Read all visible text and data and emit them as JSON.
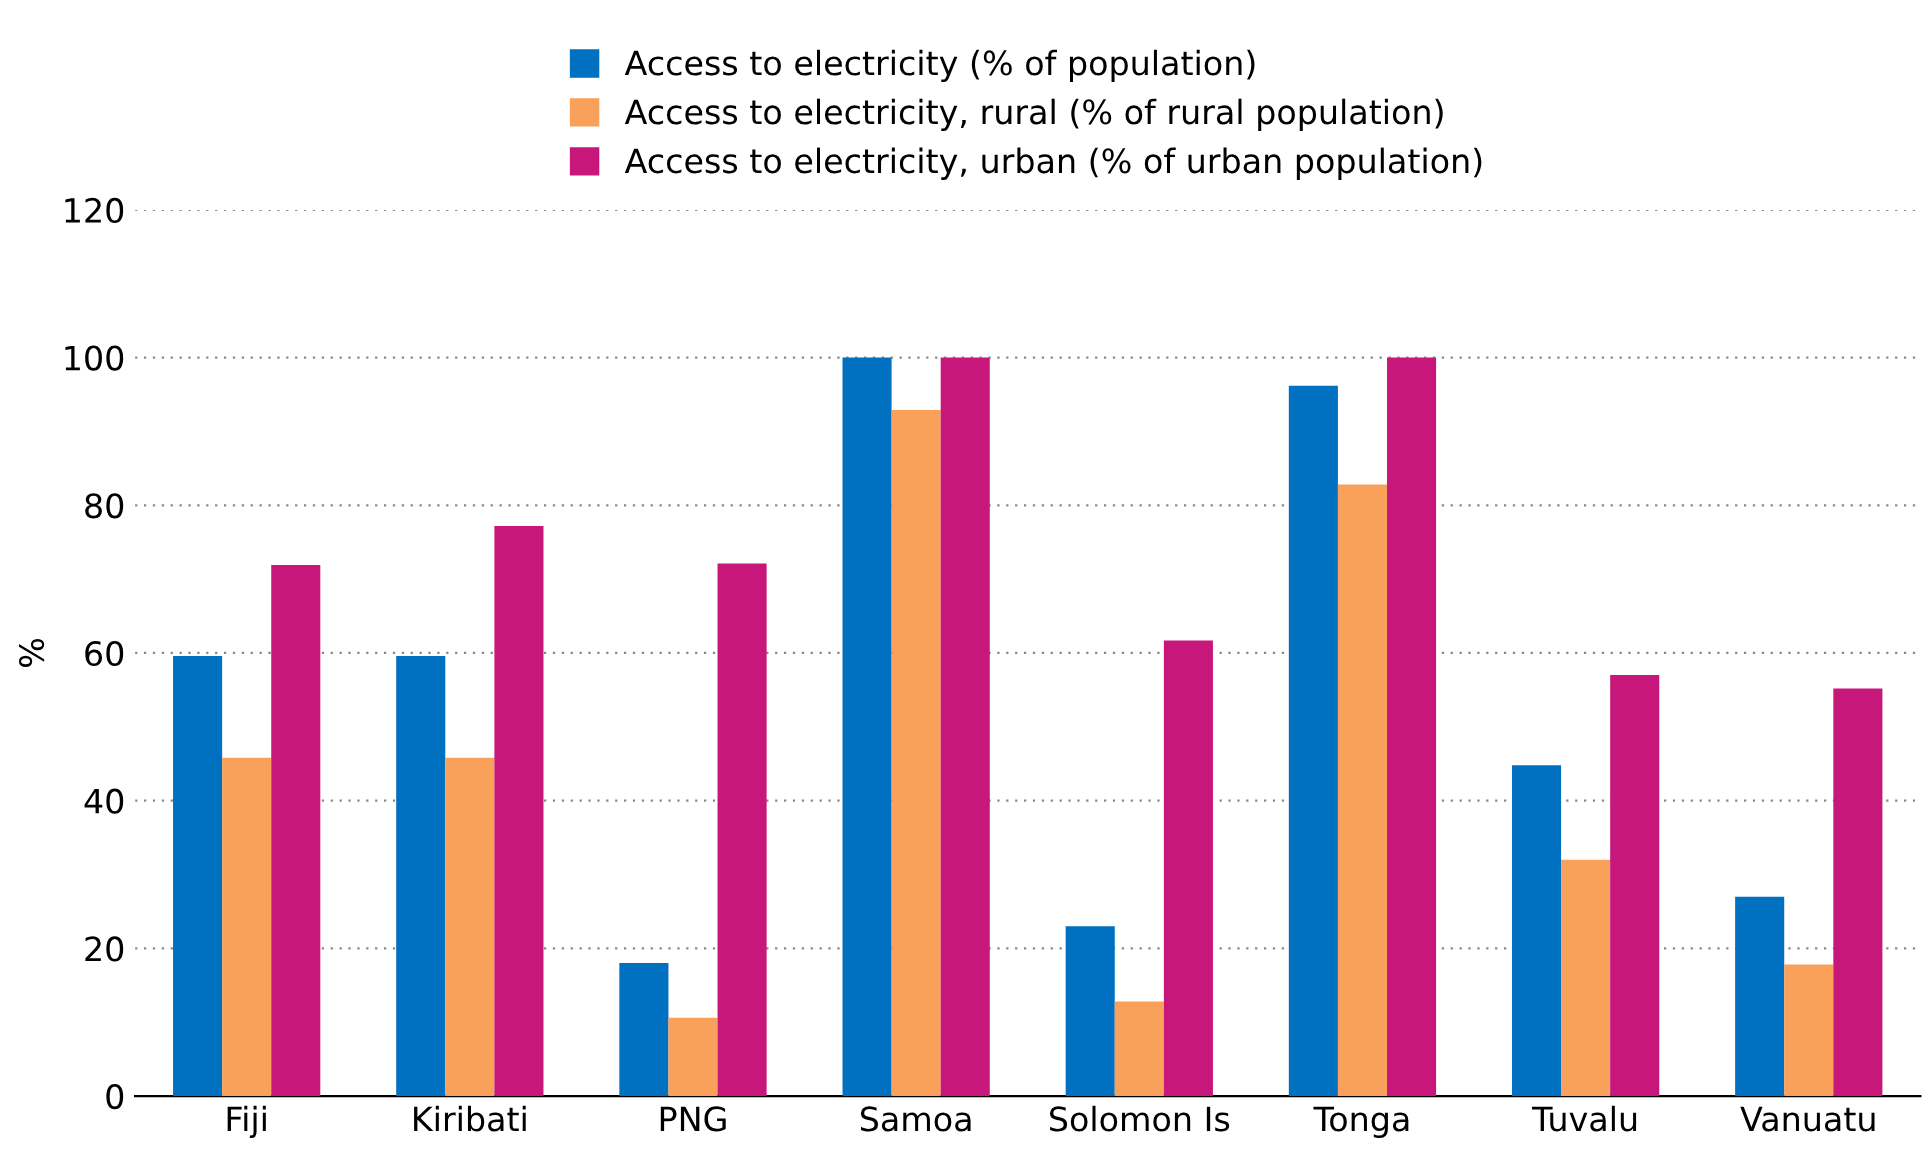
{
  "chart_data": {
    "type": "bar",
    "ylabel": "%",
    "categories": [
      "Fiji",
      "Kiribati",
      "PNG",
      "Samoa",
      "Solomon Is",
      "Tonga",
      "Tuvalu",
      "Vanuatu"
    ],
    "series": [
      {
        "name": "Access to electricity (% of population)",
        "color": "#0070c0",
        "values": [
          59.6,
          59.6,
          18,
          100,
          23,
          96.2,
          44.8,
          27
        ]
      },
      {
        "name": "Access to electricity, rural (% of rural population)",
        "color": "#f9a05a",
        "values": [
          45.8,
          45.8,
          10.6,
          92.9,
          12.8,
          82.8,
          32,
          17.8
        ]
      },
      {
        "name": "Access to electricity, urban (% of urban population)",
        "color": "#c8177b",
        "values": [
          71.9,
          77.2,
          72.1,
          100,
          61.7,
          100,
          57,
          55.2
        ]
      }
    ],
    "ylim": [
      0,
      120
    ],
    "yticks": [
      0,
      20,
      40,
      60,
      80,
      100,
      120
    ],
    "grid": "y",
    "legend": "top"
  }
}
